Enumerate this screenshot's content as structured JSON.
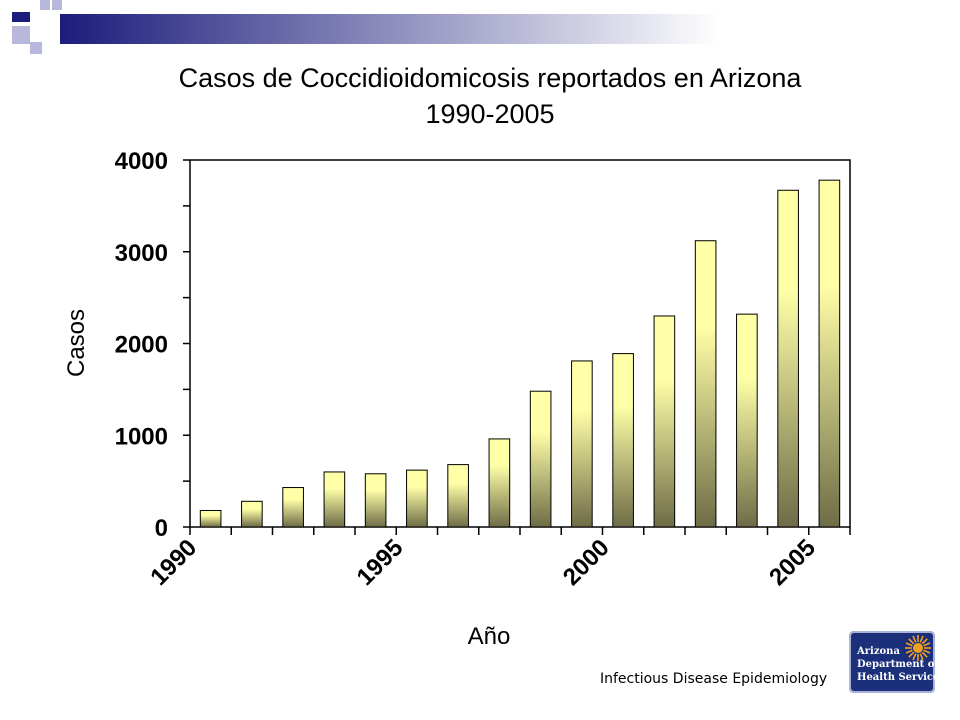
{
  "page": {
    "title_line1": "Casos de Coccidioidomicosis reportados en Arizona",
    "title_line2": "1990-2005",
    "footer": "Infectious Disease Epidemiology",
    "logo": {
      "line1": "Arizona",
      "line2": "Department of",
      "line3": "Health Services",
      "icon": "sun-icon"
    },
    "colors": {
      "deco_blue": "#1c1c7c",
      "deco_light": "#b8b8dc",
      "bar_top": "#ffffa8",
      "bar_bottom": "#6e6c46",
      "logo_bg": "#1b2f7a",
      "logo_sun": "#f0a020"
    }
  },
  "chart_data": {
    "type": "bar",
    "title": "Casos de Coccidioidomicosis reportados en Arizona 1990-2005",
    "xlabel": "Año",
    "ylabel": "Casos",
    "categories": [
      "1990",
      "1991",
      "1992",
      "1993",
      "1994",
      "1995",
      "1996",
      "1997",
      "1998",
      "1999",
      "2000",
      "2001",
      "2002",
      "2003",
      "2004",
      "2005"
    ],
    "values": [
      180,
      280,
      430,
      600,
      580,
      620,
      680,
      960,
      1480,
      1810,
      1890,
      2300,
      3120,
      2320,
      3670,
      3780
    ],
    "xtick_labels": [
      "1990",
      "1995",
      "2000",
      "2005"
    ],
    "yticks": [
      0,
      1000,
      2000,
      3000,
      4000
    ],
    "ytick_labels": [
      "0",
      "1000",
      "2000",
      "3000",
      "4000"
    ],
    "ylim": [
      0,
      4000
    ],
    "grid": false,
    "legend": "none"
  }
}
